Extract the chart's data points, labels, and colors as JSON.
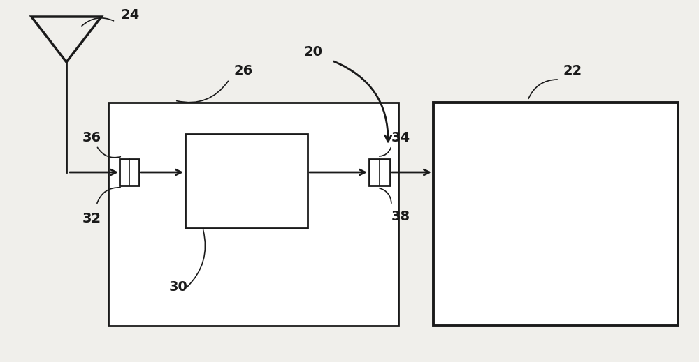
{
  "bg_color": "#f0efeb",
  "label_24": "24",
  "label_20": "20",
  "label_26": "26",
  "label_22": "22",
  "label_36": "36",
  "label_32": "32",
  "label_30": "30",
  "label_34": "34",
  "label_38": "38",
  "line_color": "#1a1a1a",
  "box_fill": "#ffffff",
  "line_width": 2.0,
  "thin_line": 1.2,
  "font_size": 14
}
